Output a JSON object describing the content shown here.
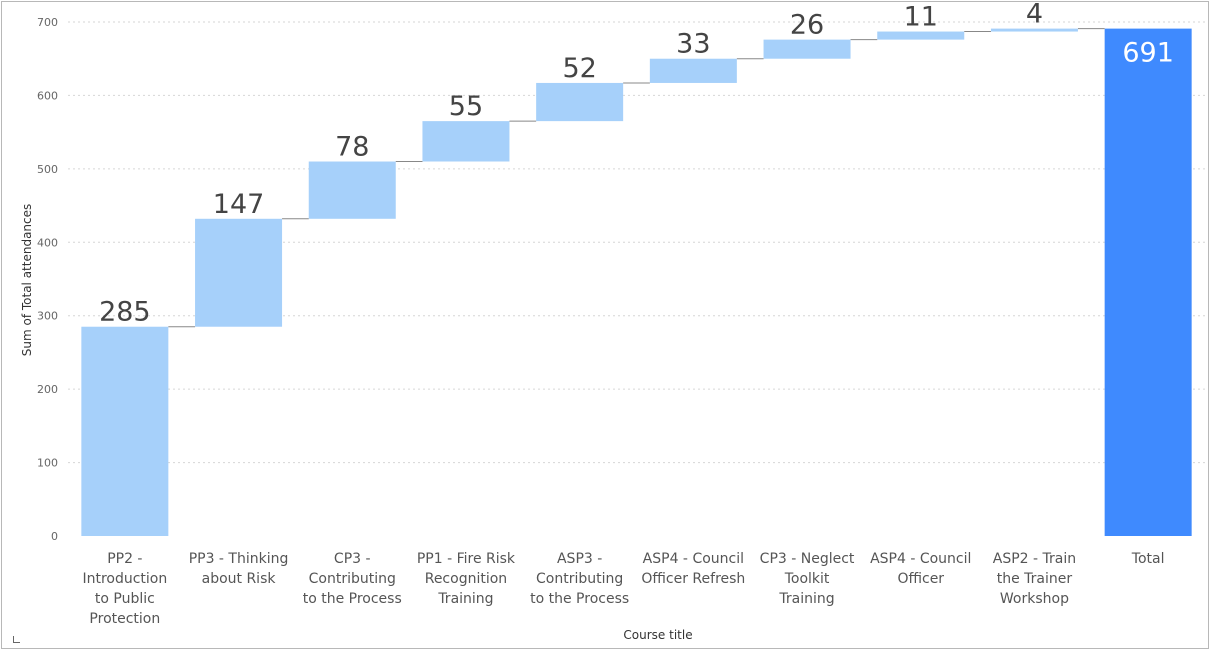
{
  "chart_data": {
    "type": "bar",
    "subtype": "waterfall",
    "xlabel": "Course title",
    "ylabel": "Sum of Total attendances",
    "ylim": [
      0,
      700
    ],
    "yticks": [
      0,
      100,
      200,
      300,
      400,
      500,
      600,
      700
    ],
    "grid": true,
    "categories": [
      [
        "PP2 -",
        "Introduction",
        "to Public",
        "Protection"
      ],
      [
        "PP3 - Thinking",
        "about Risk"
      ],
      [
        "CP3 -",
        "Contributing",
        "to the Process"
      ],
      [
        "PP1 - Fire Risk",
        "Recognition",
        "Training"
      ],
      [
        "ASP3 -",
        "Contributing",
        "to the Process"
      ],
      [
        "ASP4 - Council",
        "Officer Refresh"
      ],
      [
        "CP3 - Neglect",
        "Toolkit",
        "Training"
      ],
      [
        "ASP4 - Council",
        "Officer"
      ],
      [
        "ASP2 - Train",
        "the Trainer",
        "Workshop"
      ],
      [
        "Total"
      ]
    ],
    "values": [
      285,
      147,
      78,
      55,
      52,
      33,
      26,
      11,
      4,
      691
    ],
    "colors": {
      "increase": "#a6d0fa",
      "total": "#3f8afe",
      "grid": "#d6d6d6",
      "connector": "#888888"
    }
  }
}
